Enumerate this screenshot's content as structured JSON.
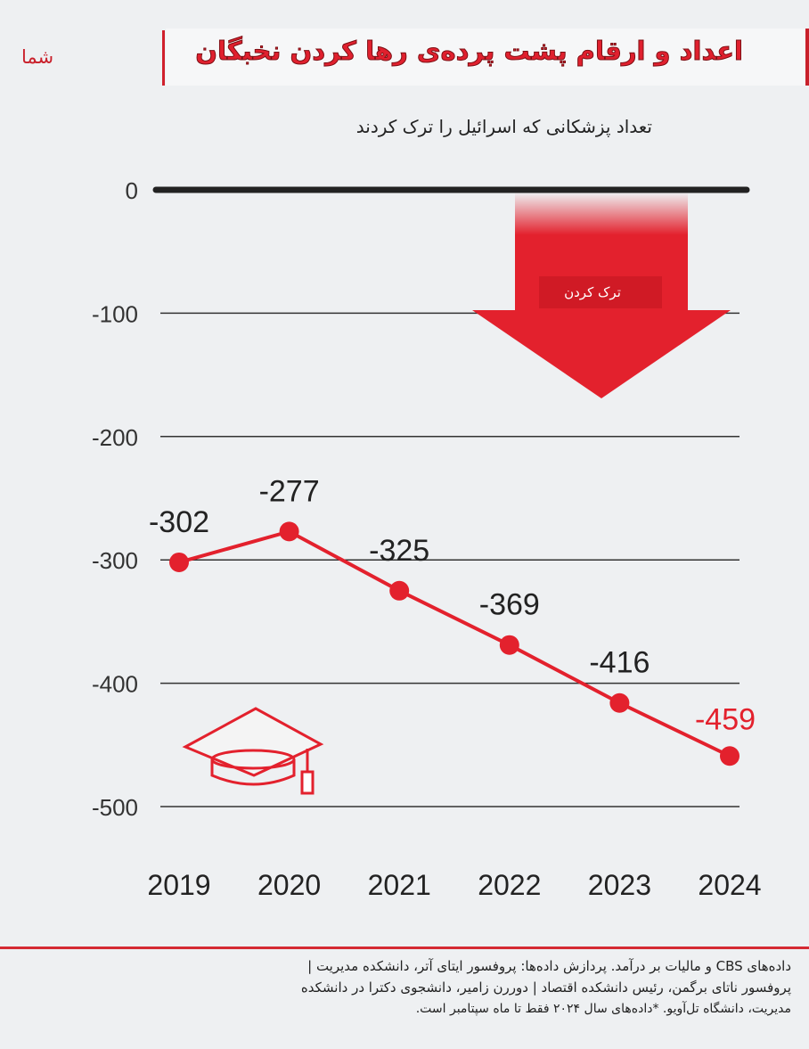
{
  "header": {
    "title": "اعداد و ارقام پشت پرده‌ی رها کردن نخبگان",
    "brand": "شما"
  },
  "colors": {
    "accent": "#e3212d",
    "line": "#e3212d",
    "zero": "#222222",
    "grid": "#333333"
  },
  "chart_data": {
    "type": "line",
    "title": "تعداد پزشکانی که اسرائیل را ترک کردند",
    "xlabel": "",
    "ylabel": "",
    "categories": [
      "2019",
      "2020",
      "2021",
      "2022",
      "2023",
      "2024"
    ],
    "values": [
      -302,
      -277,
      -325,
      -369,
      -416,
      -459
    ],
    "labels": [
      "-302",
      "-277",
      "-325",
      "-369",
      "-416",
      "-459"
    ],
    "yticks": [
      "0",
      "-100",
      "-200",
      "-300",
      "-400",
      "-500"
    ],
    "ytick_values": [
      0,
      -100,
      -200,
      -300,
      -400,
      -500
    ],
    "ylim": [
      -500,
      0
    ],
    "grid": true,
    "annotation": "ترک کردن"
  },
  "footer": {
    "lines": [
      "داده‌های CBS و مالیات بر درآمد. پردازش داده‌ها: پروفسور ایتای آتر، دانشکده مدیریت |",
      "پروفسور ناتای برگمن، رئیس دانشکده اقتصاد | دوررن زامیر، دانشجوی دکترا در دانشکده",
      "مدیریت، دانشگاه تل‌آویو. *داده‌های سال ۲۰۲۴ فقط تا ماه سپتامبر است."
    ]
  }
}
